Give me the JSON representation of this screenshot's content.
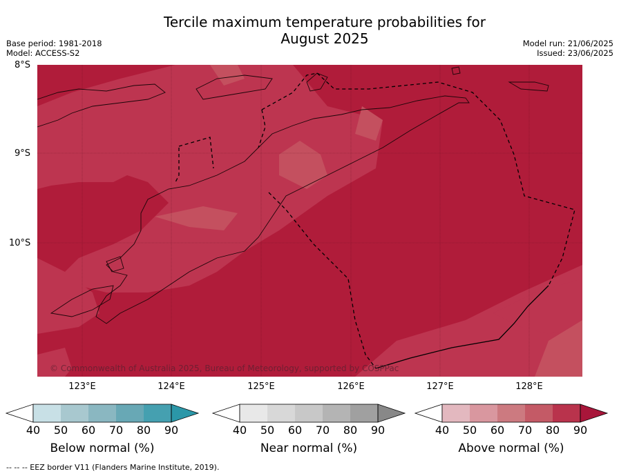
{
  "title": {
    "line1": "Tercile maximum temperature probabilities for",
    "line2": "August 2025"
  },
  "meta_left": {
    "base_period": "Base period: 1981-2018",
    "model": "Model: ACCESS-S2"
  },
  "meta_right": {
    "model_run": "Model run: 21/06/2025",
    "issued": "Issued: 23/06/2025"
  },
  "map": {
    "lat_labels": [
      "8°S",
      "9°S",
      "10°S"
    ],
    "lon_labels": [
      "123°E",
      "124°E",
      "125°E",
      "126°E",
      "127°E",
      "128°E"
    ],
    "copyright": "© Commonwealth of Australia 2025, Bureau of Meteorology, supported by COSPPac",
    "colors": {
      "above_90": "#b01c3a",
      "above_80": "#bd3550",
      "above_70": "#c4505f"
    }
  },
  "colorbars": [
    {
      "label": "Below normal (%)",
      "ticks": [
        "40",
        "50",
        "60",
        "70",
        "80",
        "90"
      ],
      "colors": [
        "#ffffff",
        "#c8e0e6",
        "#a8c8cf",
        "#8ab7c1",
        "#68a8b5",
        "#45a0b0",
        "#2b97a8"
      ]
    },
    {
      "label": "Near normal (%)",
      "ticks": [
        "40",
        "50",
        "60",
        "70",
        "80",
        "90"
      ],
      "colors": [
        "#ffffff",
        "#e8e8e8",
        "#d8d8d8",
        "#c8c8c8",
        "#b4b4b4",
        "#a0a0a0",
        "#888888"
      ]
    },
    {
      "label": "Above normal (%)",
      "ticks": [
        "40",
        "50",
        "60",
        "70",
        "80",
        "90"
      ],
      "colors": [
        "#ffffff",
        "#e3b8bf",
        "#d9979f",
        "#cc7a80",
        "#c45a66",
        "#b9334c",
        "#a8163a"
      ]
    }
  ],
  "footer": "--  --  -- EEZ border V11 (Flanders Marine Institute, 2019)."
}
